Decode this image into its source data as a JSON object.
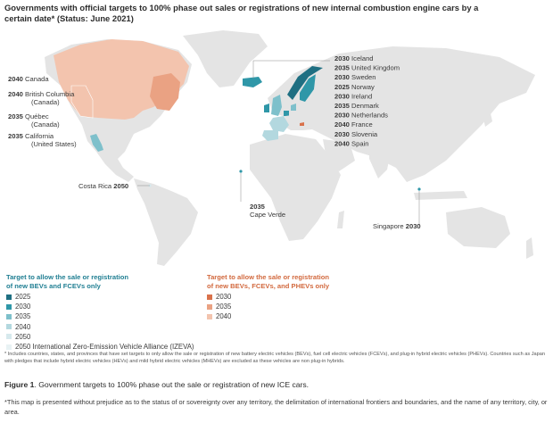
{
  "title": "Governments with official targets to 100% phase out sales or registrations of new internal combustion engine cars by a certain date* (Status: June 2021)",
  "colors": {
    "land": "#e4e4e4",
    "teal_2025": "#1f6f82",
    "teal_2030": "#2f97a8",
    "teal_2035": "#7ec0cb",
    "teal_2040": "#b3d8df",
    "teal_2050": "#d6e9ed",
    "teal_izeva": "#e8f2f4",
    "orange_2030": "#d9724b",
    "orange_2035": "#eaa283",
    "orange_2040": "#f3c4ae"
  },
  "labels": {
    "left": [
      {
        "year": "2040",
        "name": "Canada"
      },
      {
        "year": "2040",
        "name": "British Columbia",
        "sub": "(Canada)"
      },
      {
        "year": "2035",
        "name": "Québec",
        "sub": "(Canada)"
      },
      {
        "year": "2035",
        "name": "California",
        "sub": "(United States)"
      }
    ],
    "europe": [
      {
        "year": "2030",
        "name": "Iceland"
      },
      {
        "year": "2035",
        "name": "United Kingdom"
      },
      {
        "year": "2030",
        "name": "Sweden"
      },
      {
        "year": "2025",
        "name": "Norway"
      },
      {
        "year": "2030",
        "name": "Ireland"
      },
      {
        "year": "2035",
        "name": "Denmark"
      },
      {
        "year": "2030",
        "name": "Netherlands"
      },
      {
        "year": "2040",
        "name": "France"
      },
      {
        "year": "2030",
        "name": "Slovenia"
      },
      {
        "year": "2040",
        "name": "Spain"
      }
    ],
    "costa_rica": {
      "name": "Costa Rica",
      "year": "2050"
    },
    "cape_verde": {
      "year": "2035",
      "name": "Cape Verde"
    },
    "singapore": {
      "name": "Singapore",
      "year": "2030"
    }
  },
  "legend_bev": {
    "heading_line1": "Target to allow the sale or registration",
    "heading_line2": "of new BEVs and FCEVs only",
    "items": [
      "2025",
      "2030",
      "2035",
      "2040",
      "2050",
      "2050 International Zero-Emission Vehicle Alliance (IZEVA)"
    ]
  },
  "legend_phev": {
    "heading_line1": "Target to allow the sale or registration",
    "heading_line2": "of new BEVs, FCEVs, and PHEVs only",
    "items": [
      "2030",
      "2035",
      "2040"
    ]
  },
  "footnote": "* Includes countries, states, and provinces that have set targets to only allow the sale or registration of new battery electric vehicles (BEVs), fuel cell electric vehicles (FCEVs), and plug-in hybrid electric vehicles (PHEVs). Countries such as Japan with pledges that include hybrid electric vehicles (HEVs) and mild hybrid electric vehicles (MHEVs) are excluded as these vehicles are non plug-in hybrids.",
  "caption": {
    "label": "Figure 1",
    "text": ". Government targets to 100% phase out the sale or registration of new ICE cars."
  },
  "disclaimer": "*This map is presented without prejudice as to the status of or sovereignty over any territory, the delimitation of international frontiers and boundaries, and the name of any territory, city, or area."
}
